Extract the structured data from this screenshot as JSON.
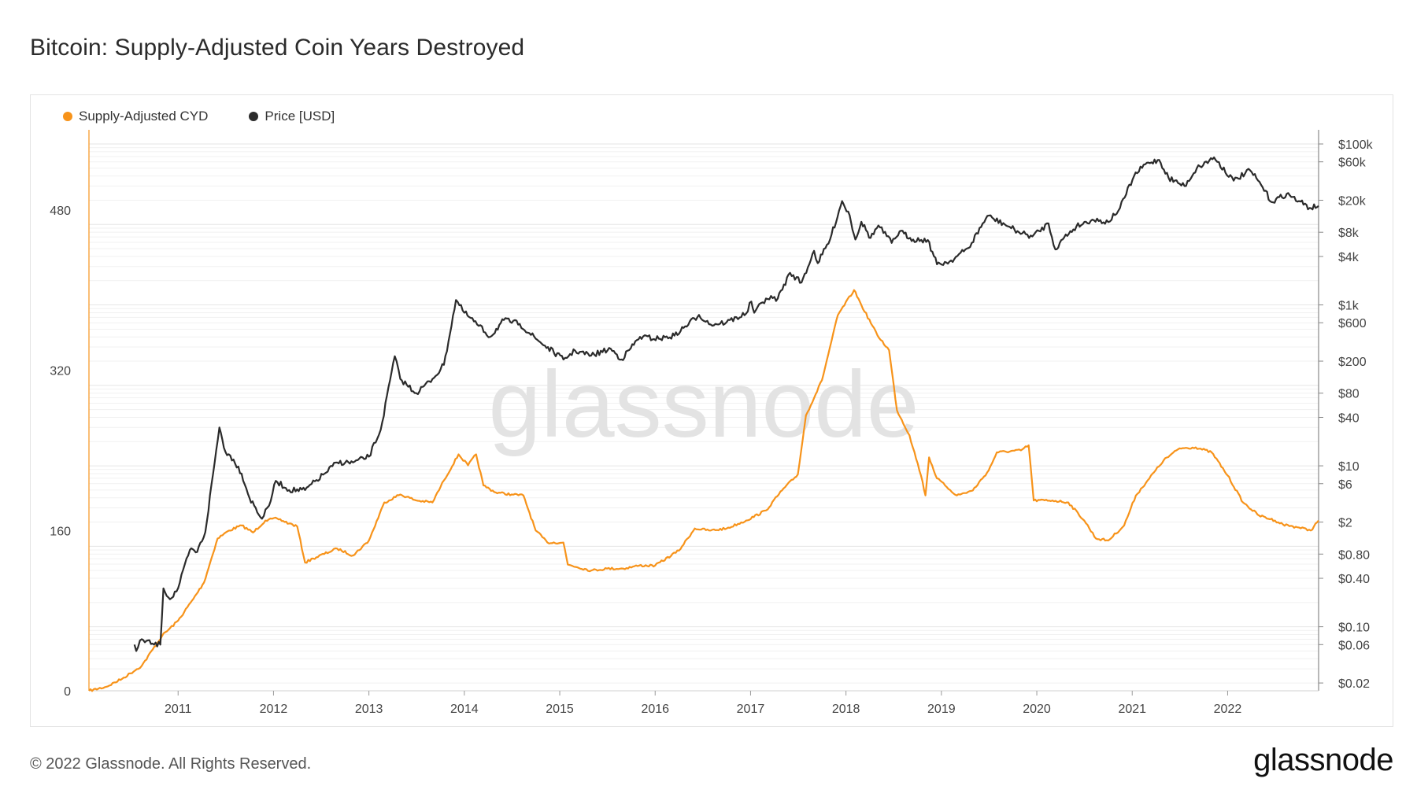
{
  "title": "Bitcoin: Supply-Adjusted Coin Years Destroyed",
  "footer": "© 2022 Glassnode. All Rights Reserved.",
  "brand": "glassnode",
  "watermark": "glassnode",
  "colors": {
    "cyd": "#f7931a",
    "price": "#2b2b2b"
  },
  "legend": [
    {
      "label": "Supply-Adjusted CYD",
      "color": "#f7931a"
    },
    {
      "label": "Price [USD]",
      "color": "#2b2b2b"
    }
  ],
  "chart_data": {
    "type": "line",
    "legend_position": "top-left",
    "grid": true,
    "x_ticks": [
      "2011",
      "2012",
      "2013",
      "2014",
      "2015",
      "2016",
      "2017",
      "2018",
      "2019",
      "2020",
      "2021",
      "2022"
    ],
    "x_range": [
      "2010-01-25",
      "2022-12-15"
    ],
    "y_left": {
      "ticks": [
        "0",
        "160",
        "320",
        "480"
      ],
      "range": [
        0,
        560
      ]
    },
    "y_right": {
      "scale": "log",
      "ticks": [
        "$100k",
        "$60k",
        "$20k",
        "$8k",
        "$4k",
        "$1k",
        "$600",
        "$200",
        "$80",
        "$40",
        "$10",
        "$6",
        "$2",
        "$0.80",
        "$0.40",
        "$0.10",
        "$0.06",
        "$0.02"
      ],
      "tick_values": [
        100000,
        60000,
        20000,
        8000,
        4000,
        1000,
        600,
        200,
        80,
        40,
        10,
        6,
        2,
        0.8,
        0.4,
        0.1,
        0.06,
        0.02
      ],
      "range": [
        0.016,
        150000
      ]
    },
    "series": [
      {
        "name": "Supply-Adjusted CYD",
        "axis": "left",
        "points": [
          [
            "2010-01-25",
            0
          ],
          [
            "2010-04-01",
            4
          ],
          [
            "2010-06-01",
            12
          ],
          [
            "2010-08-15",
            25
          ],
          [
            "2010-11-01",
            55
          ],
          [
            "2011-01-01",
            70
          ],
          [
            "2011-03-01",
            92
          ],
          [
            "2011-04-10",
            108
          ],
          [
            "2011-06-01",
            152
          ],
          [
            "2011-07-15",
            160
          ],
          [
            "2011-09-01",
            165
          ],
          [
            "2011-10-15",
            158
          ],
          [
            "2011-12-01",
            170
          ],
          [
            "2012-01-15",
            172
          ],
          [
            "2012-03-01",
            167
          ],
          [
            "2012-04-01",
            164
          ],
          [
            "2012-05-01",
            128
          ],
          [
            "2012-06-01",
            132
          ],
          [
            "2012-09-01",
            142
          ],
          [
            "2012-11-01",
            135
          ],
          [
            "2013-01-01",
            150
          ],
          [
            "2013-03-01",
            188
          ],
          [
            "2013-05-01",
            196
          ],
          [
            "2013-07-01",
            190
          ],
          [
            "2013-09-01",
            188
          ],
          [
            "2013-10-15",
            210
          ],
          [
            "2013-12-10",
            236
          ],
          [
            "2014-01-15",
            225
          ],
          [
            "2014-02-15",
            236
          ],
          [
            "2014-03-15",
            205
          ],
          [
            "2014-05-01",
            198
          ],
          [
            "2014-07-01",
            196
          ],
          [
            "2014-08-15",
            195
          ],
          [
            "2014-10-01",
            160
          ],
          [
            "2014-11-15",
            148
          ],
          [
            "2015-01-15",
            148
          ],
          [
            "2015-02-01",
            126
          ],
          [
            "2015-05-01",
            120
          ],
          [
            "2015-07-01",
            122
          ],
          [
            "2015-09-01",
            122
          ],
          [
            "2015-11-01",
            125
          ],
          [
            "2016-01-01",
            125
          ],
          [
            "2016-04-01",
            140
          ],
          [
            "2016-06-01",
            162
          ],
          [
            "2016-08-01",
            160
          ],
          [
            "2016-10-01",
            162
          ],
          [
            "2016-12-15",
            170
          ],
          [
            "2017-03-01",
            180
          ],
          [
            "2017-05-01",
            200
          ],
          [
            "2017-07-01",
            216
          ],
          [
            "2017-08-01",
            275
          ],
          [
            "2017-10-01",
            310
          ],
          [
            "2017-12-01",
            375
          ],
          [
            "2018-02-01",
            400
          ],
          [
            "2018-03-01",
            385
          ],
          [
            "2018-05-01",
            355
          ],
          [
            "2018-06-15",
            340
          ],
          [
            "2018-07-15",
            280
          ],
          [
            "2018-09-01",
            255
          ],
          [
            "2018-10-15",
            215
          ],
          [
            "2018-11-01",
            195
          ],
          [
            "2018-11-15",
            233
          ],
          [
            "2018-12-15",
            212
          ],
          [
            "2019-01-15",
            205
          ],
          [
            "2019-03-01",
            195
          ],
          [
            "2019-05-01",
            200
          ],
          [
            "2019-07-01",
            220
          ],
          [
            "2019-08-01",
            238
          ],
          [
            "2019-11-01",
            240
          ],
          [
            "2019-12-01",
            245
          ],
          [
            "2019-12-20",
            190
          ],
          [
            "2020-03-01",
            190
          ],
          [
            "2020-05-01",
            188
          ],
          [
            "2020-07-01",
            170
          ],
          [
            "2020-08-15",
            152
          ],
          [
            "2020-10-01",
            150
          ],
          [
            "2020-12-01",
            165
          ],
          [
            "2021-01-15",
            195
          ],
          [
            "2021-03-01",
            210
          ],
          [
            "2021-05-01",
            230
          ],
          [
            "2021-07-01",
            242
          ],
          [
            "2021-09-01",
            243
          ],
          [
            "2021-11-01",
            238
          ],
          [
            "2022-01-01",
            215
          ],
          [
            "2022-03-01",
            188
          ],
          [
            "2022-05-01",
            175
          ],
          [
            "2022-07-01",
            170
          ],
          [
            "2022-08-01",
            166
          ],
          [
            "2022-10-01",
            163
          ],
          [
            "2022-11-15",
            160
          ],
          [
            "2022-12-15",
            170
          ]
        ]
      },
      {
        "name": "Price [USD]",
        "axis": "right",
        "points": [
          [
            "2010-07-18",
            0.06
          ],
          [
            "2010-07-25",
            0.05
          ],
          [
            "2010-08-15",
            0.07
          ],
          [
            "2010-10-01",
            0.06
          ],
          [
            "2010-10-25",
            0.06
          ],
          [
            "2010-11-06",
            0.3
          ],
          [
            "2010-12-01",
            0.22
          ],
          [
            "2011-01-01",
            0.3
          ],
          [
            "2011-02-15",
            0.9
          ],
          [
            "2011-03-15",
            0.85
          ],
          [
            "2011-04-15",
            1.5
          ],
          [
            "2011-05-15",
            8
          ],
          [
            "2011-06-08",
            30
          ],
          [
            "2011-07-01",
            15
          ],
          [
            "2011-08-01",
            12
          ],
          [
            "2011-09-01",
            8
          ],
          [
            "2011-10-01",
            4
          ],
          [
            "2011-11-18",
            2.2
          ],
          [
            "2011-12-15",
            3.2
          ],
          [
            "2012-01-10",
            6.5
          ],
          [
            "2012-03-01",
            5
          ],
          [
            "2012-05-01",
            5
          ],
          [
            "2012-07-15",
            8
          ],
          [
            "2012-09-01",
            11
          ],
          [
            "2012-11-01",
            11
          ],
          [
            "2013-01-01",
            13
          ],
          [
            "2013-02-15",
            28
          ],
          [
            "2013-04-10",
            230
          ],
          [
            "2013-05-01",
            120
          ],
          [
            "2013-07-01",
            80
          ],
          [
            "2013-09-01",
            120
          ],
          [
            "2013-10-15",
            180
          ],
          [
            "2013-11-30",
            1150
          ],
          [
            "2014-01-01",
            800
          ],
          [
            "2014-02-25",
            550
          ],
          [
            "2014-04-10",
            400
          ],
          [
            "2014-06-01",
            650
          ],
          [
            "2014-08-01",
            580
          ],
          [
            "2014-10-01",
            380
          ],
          [
            "2015-01-15",
            210
          ],
          [
            "2015-03-01",
            270
          ],
          [
            "2015-05-01",
            235
          ],
          [
            "2015-07-15",
            285
          ],
          [
            "2015-08-25",
            210
          ],
          [
            "2015-11-04",
            400
          ],
          [
            "2016-01-15",
            380
          ],
          [
            "2016-03-15",
            415
          ],
          [
            "2016-06-17",
            750
          ],
          [
            "2016-08-01",
            570
          ],
          [
            "2016-10-01",
            610
          ],
          [
            "2016-12-15",
            780
          ],
          [
            "2017-01-04",
            1100
          ],
          [
            "2017-01-15",
            800
          ],
          [
            "2017-03-01",
            1200
          ],
          [
            "2017-04-15",
            1200
          ],
          [
            "2017-06-01",
            2500
          ],
          [
            "2017-07-15",
            1900
          ],
          [
            "2017-09-01",
            4700
          ],
          [
            "2017-09-15",
            3300
          ],
          [
            "2017-11-01",
            6500
          ],
          [
            "2017-12-17",
            19500
          ],
          [
            "2018-01-15",
            13000
          ],
          [
            "2018-02-06",
            6500
          ],
          [
            "2018-03-01",
            10800
          ],
          [
            "2018-04-05",
            6800
          ],
          [
            "2018-05-05",
            9700
          ],
          [
            "2018-06-25",
            5900
          ],
          [
            "2018-07-25",
            8200
          ],
          [
            "2018-09-15",
            6500
          ],
          [
            "2018-11-10",
            6400
          ],
          [
            "2018-12-15",
            3200
          ],
          [
            "2019-02-01",
            3450
          ],
          [
            "2019-04-15",
            5100
          ],
          [
            "2019-06-26",
            12800
          ],
          [
            "2019-09-01",
            10000
          ],
          [
            "2019-10-25",
            8000
          ],
          [
            "2019-12-15",
            7100
          ],
          [
            "2020-02-15",
            10300
          ],
          [
            "2020-03-12",
            4900
          ],
          [
            "2020-04-15",
            6900
          ],
          [
            "2020-06-01",
            9500
          ],
          [
            "2020-08-01",
            11500
          ],
          [
            "2020-10-01",
            10700
          ],
          [
            "2020-11-15",
            16000
          ],
          [
            "2021-01-08",
            40000
          ],
          [
            "2021-02-20",
            56000
          ],
          [
            "2021-04-14",
            63500
          ],
          [
            "2021-05-20",
            38000
          ],
          [
            "2021-07-20",
            30000
          ],
          [
            "2021-09-05",
            50000
          ],
          [
            "2021-11-10",
            68000
          ],
          [
            "2022-01-24",
            35000
          ],
          [
            "2022-03-28",
            47000
          ],
          [
            "2022-05-15",
            29000
          ],
          [
            "2022-06-18",
            19000
          ],
          [
            "2022-08-15",
            24000
          ],
          [
            "2022-10-01",
            19500
          ],
          [
            "2022-11-10",
            16000
          ],
          [
            "2022-12-15",
            17000
          ]
        ]
      }
    ]
  }
}
